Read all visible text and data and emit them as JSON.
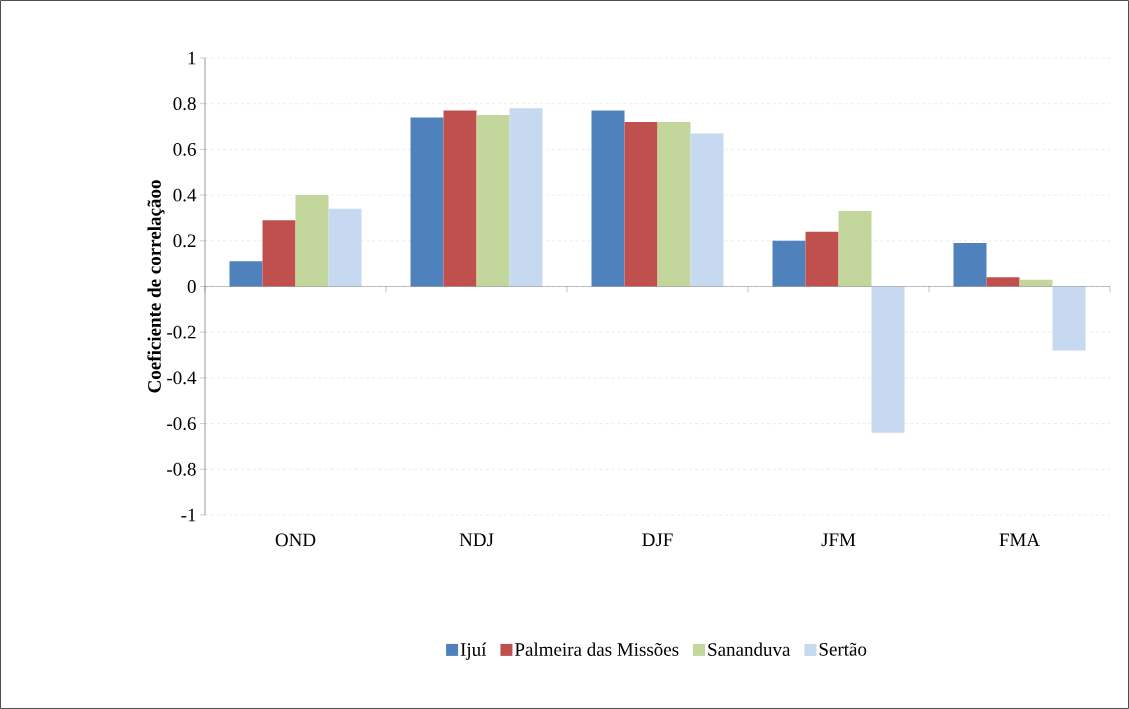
{
  "chart_data": {
    "type": "bar",
    "ylabel": "Coeficiente de correlaçãoo",
    "categories": [
      "OND",
      "NDJ",
      "DJF",
      "JFM",
      "FMA"
    ],
    "series": [
      {
        "name": "Ijuí",
        "color": "#4f81bd",
        "values": [
          0.11,
          0.74,
          0.77,
          0.2,
          0.19
        ]
      },
      {
        "name": "Palmeira das Missões",
        "color": "#c0504d",
        "values": [
          0.29,
          0.77,
          0.72,
          0.24,
          0.04
        ]
      },
      {
        "name": "Sananduva",
        "color": "#c3d69b",
        "values": [
          0.4,
          0.75,
          0.72,
          0.33,
          0.03
        ]
      },
      {
        "name": "Sertão",
        "color": "#c6d9f1",
        "values": [
          0.34,
          0.78,
          0.67,
          -0.64,
          -0.28
        ]
      }
    ],
    "ylim": [
      -1,
      1
    ],
    "yticks": [
      -1,
      -0.8,
      -0.6,
      -0.4,
      -0.2,
      0,
      0.2,
      0.4,
      0.6,
      0.8,
      1
    ],
    "grid": "y",
    "legend": "bottom"
  }
}
